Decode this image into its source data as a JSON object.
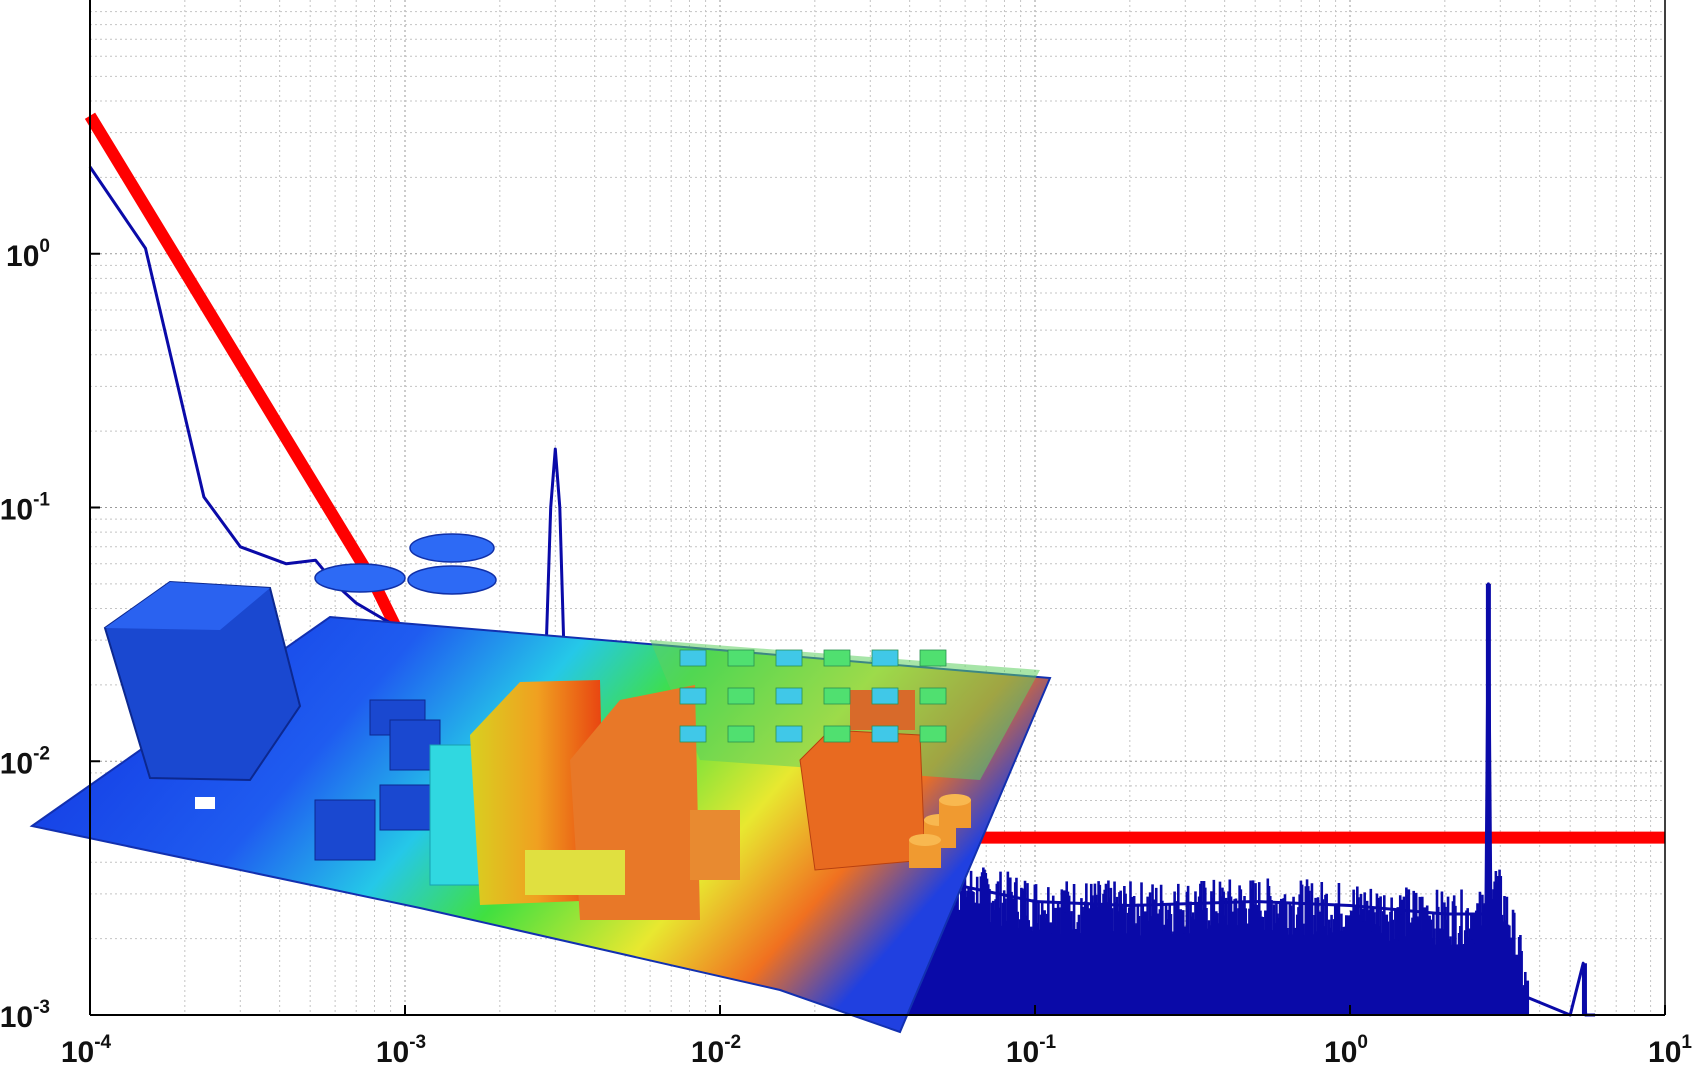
{
  "chart_data": {
    "type": "line",
    "title": "",
    "xlabel": "",
    "ylabel": "",
    "x_scale": "log",
    "y_scale": "log",
    "xlim": [
      0.0001,
      10
    ],
    "ylim": [
      0.001,
      10
    ],
    "grid": true,
    "minor_grid": true,
    "x_ticks": [
      {
        "value": 0.0001,
        "base": "10",
        "exp": "-4"
      },
      {
        "value": 0.001,
        "base": "10",
        "exp": "-3"
      },
      {
        "value": 0.01,
        "base": "10",
        "exp": "-2"
      },
      {
        "value": 0.1,
        "base": "10",
        "exp": "-1"
      },
      {
        "value": 1,
        "base": "10",
        "exp": "0"
      },
      {
        "value": 10,
        "base": "10",
        "exp": "1"
      }
    ],
    "y_ticks": [
      {
        "value": 0.001,
        "base": "10",
        "exp": "-3"
      },
      {
        "value": 0.01,
        "base": "10",
        "exp": "-2"
      },
      {
        "value": 0.1,
        "base": "10",
        "exp": "-1"
      },
      {
        "value": 1,
        "base": "10",
        "exp": "0"
      }
    ],
    "series": [
      {
        "color": "#ff0000",
        "style": "thick-line",
        "x": [
          0.0001,
          0.0008,
          0.002,
          10
        ],
        "y": [
          3.5,
          0.05,
          0.005,
          0.005
        ]
      },
      {
        "color": "#0a0aa8",
        "style": "spectrum",
        "x": [
          0.0001,
          0.00015,
          0.00023,
          0.0003,
          0.00042,
          0.00052,
          0.0006,
          0.0007,
          0.0009,
          0.0012,
          0.0016,
          0.0022,
          0.0028,
          0.0029,
          0.003,
          0.0031,
          0.0032,
          0.0035,
          0.005,
          0.01,
          0.02,
          0.04,
          0.06,
          0.1,
          0.2,
          0.5,
          1,
          2,
          2.7,
          2.75,
          2.8,
          3,
          3.5,
          5,
          5.5,
          5.6,
          6
        ],
        "y": [
          2.2,
          1.05,
          0.11,
          0.07,
          0.06,
          0.062,
          0.05,
          0.042,
          0.035,
          0.03,
          0.027,
          0.026,
          0.026,
          0.1,
          0.17,
          0.1,
          0.026,
          0.02,
          0.014,
          0.008,
          0.0055,
          0.0038,
          0.0032,
          0.0028,
          0.0027,
          0.0028,
          0.0027,
          0.0025,
          0.0025,
          0.05,
          0.0025,
          0.0018,
          0.0012,
          0.001,
          0.0016,
          0.001,
          0.001
        ]
      }
    ],
    "overlay_image": "3D circuit board thermal map"
  }
}
